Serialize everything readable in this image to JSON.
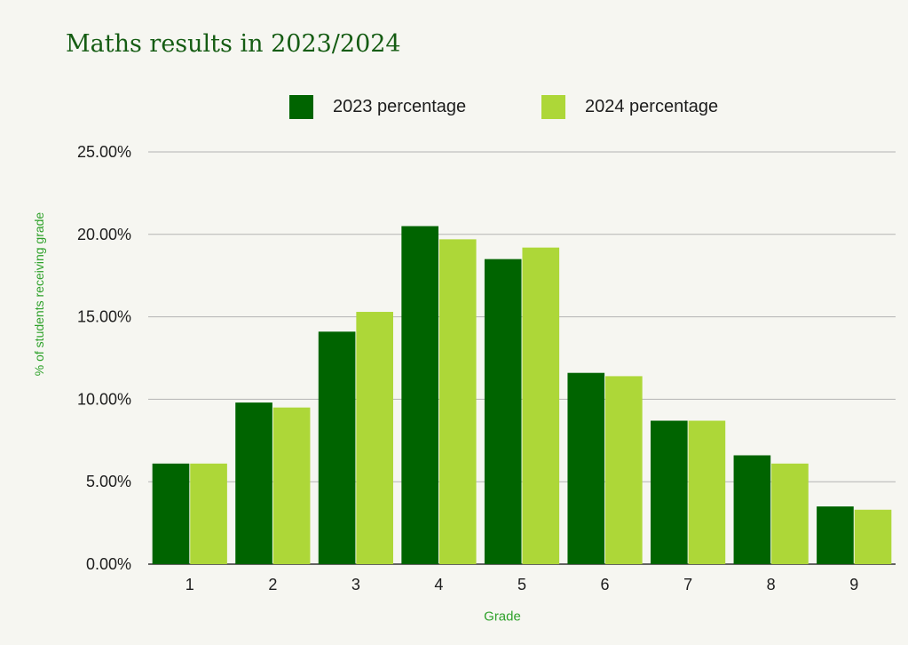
{
  "chart_data": {
    "type": "bar",
    "title": "Maths results in 2023/2024",
    "xlabel": "Grade",
    "ylabel": "% of students receiving grade",
    "categories": [
      "1",
      "2",
      "3",
      "4",
      "5",
      "6",
      "7",
      "8",
      "9"
    ],
    "series": [
      {
        "name": "2023 percentage",
        "color": "#006400",
        "values": [
          6.1,
          9.8,
          14.1,
          20.5,
          18.5,
          11.6,
          8.7,
          6.6,
          3.5
        ]
      },
      {
        "name": "2024 percentage",
        "color": "#add738",
        "values": [
          6.1,
          9.5,
          15.3,
          19.7,
          19.2,
          11.4,
          8.7,
          6.1,
          3.3
        ]
      }
    ],
    "ylim": [
      0,
      25
    ],
    "y_ticks": [
      0,
      5,
      10,
      15,
      20,
      25
    ],
    "y_tick_labels": [
      "0.00%",
      "5.00%",
      "10.00%",
      "15.00%",
      "20.00%",
      "25.00%"
    ],
    "grid": true,
    "legend_position": "top"
  }
}
